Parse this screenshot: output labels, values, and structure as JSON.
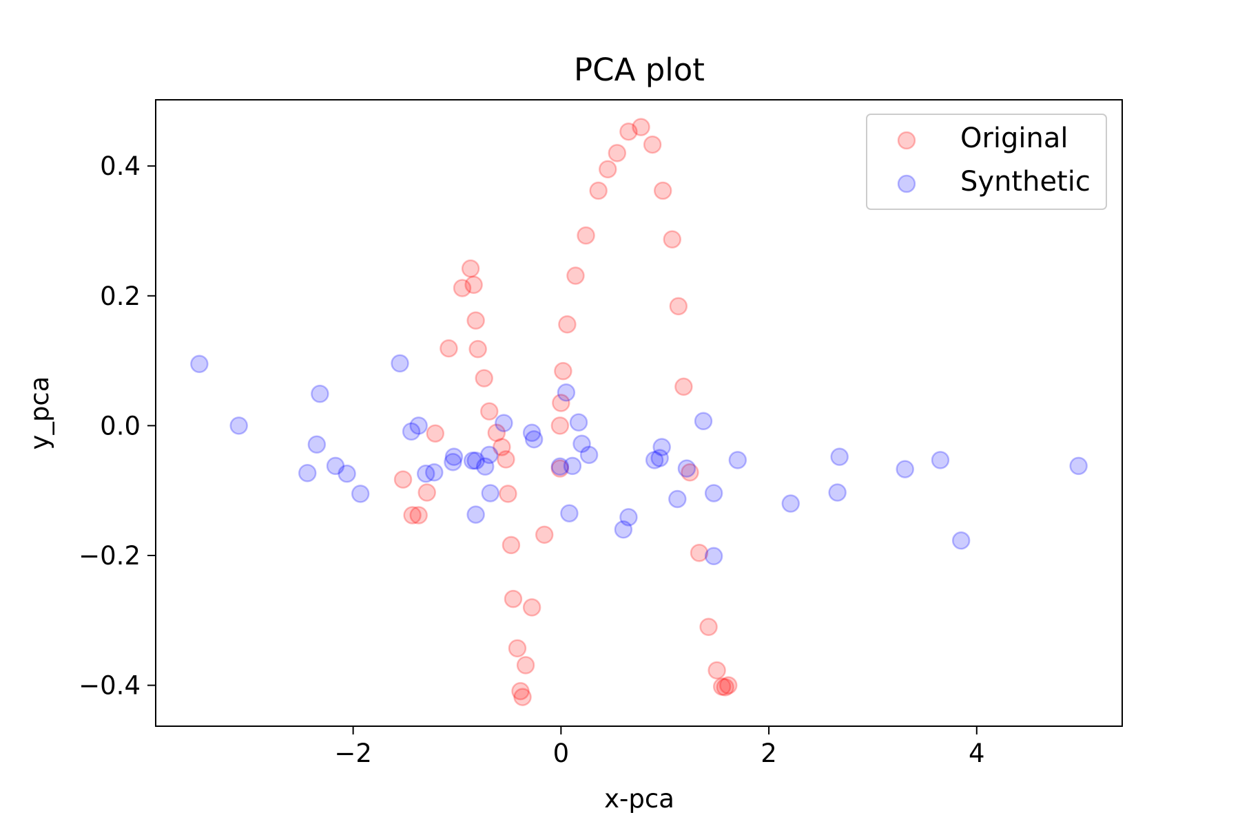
{
  "chart_data": {
    "type": "scatter",
    "title": "PCA plot",
    "xlabel": "x-pca",
    "ylabel": "y_pca",
    "xlim": [
      -3.9,
      5.4
    ],
    "ylim": [
      -0.463,
      0.502
    ],
    "xticks": [
      -2,
      0,
      2,
      4
    ],
    "xtick_labels": [
      "−2",
      "0",
      "2",
      "4"
    ],
    "yticks": [
      -0.4,
      -0.2,
      0.0,
      0.2,
      0.4
    ],
    "ytick_labels": [
      "−0.4",
      "−0.2",
      "0.0",
      "0.2",
      "0.4"
    ],
    "grid": false,
    "legend": "top-right",
    "series": [
      {
        "name": "Original",
        "color": "#ff0000",
        "alpha": 0.2,
        "x": [
          0.77,
          0.65,
          0.88,
          0.54,
          0.45,
          0.36,
          0.98,
          0.24,
          1.07,
          -0.87,
          0.14,
          -0.84,
          -0.95,
          1.13,
          -0.82,
          0.06,
          -1.08,
          -0.8,
          0.02,
          -0.74,
          1.18,
          -0.69,
          0.0,
          -0.01,
          -1.21,
          -0.62,
          -0.57,
          -0.53,
          -0.01,
          1.24,
          -1.52,
          -1.29,
          -0.51,
          -1.43,
          -1.37,
          -0.16,
          -0.48,
          1.33,
          -0.46,
          -0.28,
          1.42,
          -0.42,
          -0.34,
          1.5,
          -0.39,
          -0.37,
          1.55,
          1.61,
          1.58
        ],
        "y": [
          0.46,
          0.453,
          0.433,
          0.42,
          0.395,
          0.362,
          0.362,
          0.293,
          0.287,
          0.242,
          0.231,
          0.217,
          0.212,
          0.184,
          0.162,
          0.156,
          0.119,
          0.118,
          0.084,
          0.073,
          0.06,
          0.022,
          0.035,
          0.0,
          -0.012,
          -0.011,
          -0.033,
          -0.052,
          -0.066,
          -0.072,
          -0.083,
          -0.103,
          -0.105,
          -0.138,
          -0.138,
          -0.168,
          -0.184,
          -0.196,
          -0.267,
          -0.28,
          -0.31,
          -0.343,
          -0.369,
          -0.377,
          -0.409,
          -0.418,
          -0.402,
          -0.4,
          -0.403
        ]
      },
      {
        "name": "Synthetic",
        "color": "#0000ff",
        "alpha": 0.2,
        "x": [
          -3.48,
          -1.55,
          -2.32,
          0.05,
          -3.1,
          -1.37,
          -1.44,
          -0.55,
          0.17,
          1.37,
          -0.28,
          -0.26,
          0.2,
          -2.35,
          0.27,
          -1.03,
          -0.69,
          -0.85,
          -0.82,
          -2.17,
          -1.04,
          -0.73,
          0.11,
          -0.01,
          -2.44,
          -2.06,
          -1.3,
          -1.22,
          -1.93,
          -0.68,
          0.97,
          0.95,
          0.9,
          1.21,
          1.7,
          2.68,
          3.65,
          3.31,
          4.98,
          1.47,
          1.12,
          2.66,
          2.21,
          -0.82,
          0.08,
          0.65,
          0.6,
          1.47,
          3.85
        ],
        "y": [
          0.095,
          0.096,
          0.049,
          0.051,
          0.0,
          0.0,
          -0.009,
          0.004,
          0.005,
          0.007,
          -0.011,
          -0.021,
          -0.028,
          -0.029,
          -0.045,
          -0.048,
          -0.045,
          -0.054,
          -0.054,
          -0.062,
          -0.056,
          -0.063,
          -0.062,
          -0.063,
          -0.073,
          -0.074,
          -0.074,
          -0.072,
          -0.105,
          -0.104,
          -0.033,
          -0.05,
          -0.053,
          -0.066,
          -0.053,
          -0.048,
          -0.053,
          -0.067,
          -0.062,
          -0.104,
          -0.113,
          -0.103,
          -0.12,
          -0.137,
          -0.135,
          -0.141,
          -0.16,
          -0.201,
          -0.177
        ]
      }
    ]
  }
}
